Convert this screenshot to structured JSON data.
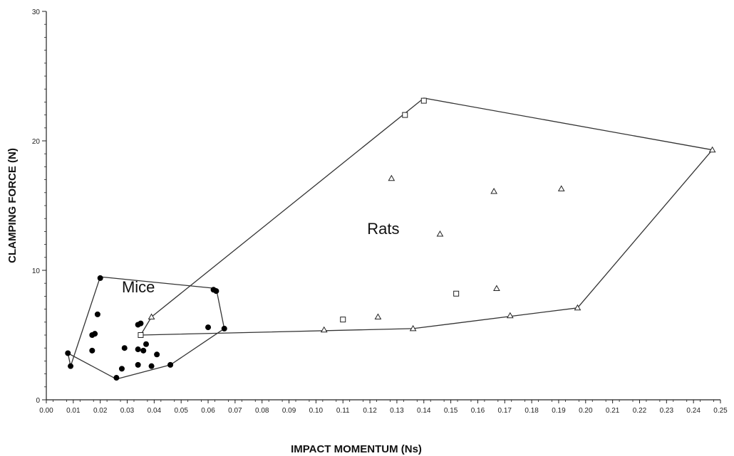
{
  "chart_data": {
    "type": "scatter",
    "title": "",
    "xlabel": "IMPACT MOMENTUM (Ns)",
    "ylabel": "CLAMPING FORCE (N)",
    "xlim": [
      0,
      0.25
    ],
    "ylim": [
      0,
      30
    ],
    "x_ticks": [
      "0.00",
      "0.01",
      "0.02",
      "0.03",
      "0.04",
      "0.05",
      "0.06",
      "0.07",
      "0.08",
      "0.09",
      "0.10",
      "0.11",
      "0.12",
      "0.13",
      "0.14",
      "0.15",
      "0.16",
      "0.17",
      "0.18",
      "0.19",
      "0.20",
      "0.21",
      "0.22",
      "0.23",
      "0.24",
      "0.25"
    ],
    "y_ticks": [
      "0",
      "10",
      "20",
      "30"
    ],
    "grid": false,
    "series": [
      {
        "marker": "filled-circle",
        "points": [
          [
            0.02,
            9.4
          ],
          [
            0.063,
            8.4
          ],
          [
            0.062,
            8.5
          ],
          [
            0.019,
            6.6
          ],
          [
            0.034,
            5.8
          ],
          [
            0.035,
            5.9
          ],
          [
            0.06,
            5.6
          ],
          [
            0.066,
            5.5
          ],
          [
            0.018,
            5.1
          ],
          [
            0.017,
            5.0
          ],
          [
            0.037,
            4.3
          ],
          [
            0.029,
            4.0
          ],
          [
            0.034,
            3.9
          ],
          [
            0.036,
            3.8
          ],
          [
            0.017,
            3.8
          ],
          [
            0.008,
            3.6
          ],
          [
            0.041,
            3.5
          ],
          [
            0.034,
            2.7
          ],
          [
            0.039,
            2.6
          ],
          [
            0.046,
            2.7
          ],
          [
            0.009,
            2.6
          ],
          [
            0.028,
            2.4
          ],
          [
            0.026,
            1.7
          ]
        ]
      },
      {
        "marker": "open-square",
        "points": [
          [
            0.14,
            23.1
          ],
          [
            0.133,
            22.0
          ],
          [
            0.152,
            8.2
          ],
          [
            0.11,
            6.2
          ],
          [
            0.035,
            5.0
          ]
        ]
      },
      {
        "marker": "open-triangle",
        "points": [
          [
            0.247,
            19.3
          ],
          [
            0.128,
            17.1
          ],
          [
            0.166,
            16.1
          ],
          [
            0.191,
            16.3
          ],
          [
            0.146,
            12.8
          ],
          [
            0.167,
            8.6
          ],
          [
            0.039,
            6.4
          ],
          [
            0.123,
            6.4
          ],
          [
            0.172,
            6.5
          ],
          [
            0.197,
            7.1
          ],
          [
            0.103,
            5.4
          ],
          [
            0.136,
            5.5
          ]
        ]
      }
    ],
    "regions": [
      {
        "label": "Mice",
        "label_position": [
          0.028,
          8.3
        ],
        "hull": [
          [
            0.02,
            9.5
          ],
          [
            0.063,
            8.6
          ],
          [
            0.066,
            5.5
          ],
          [
            0.046,
            2.7
          ],
          [
            0.026,
            1.6
          ],
          [
            0.008,
            3.6
          ],
          [
            0.009,
            2.6
          ]
        ]
      },
      {
        "label": "Rats",
        "label_position": [
          0.119,
          12.8
        ],
        "hull": [
          [
            0.039,
            6.4
          ],
          [
            0.14,
            23.3
          ],
          [
            0.247,
            19.3
          ],
          [
            0.197,
            7.1
          ],
          [
            0.136,
            5.5
          ],
          [
            0.035,
            5.0
          ]
        ]
      }
    ]
  }
}
